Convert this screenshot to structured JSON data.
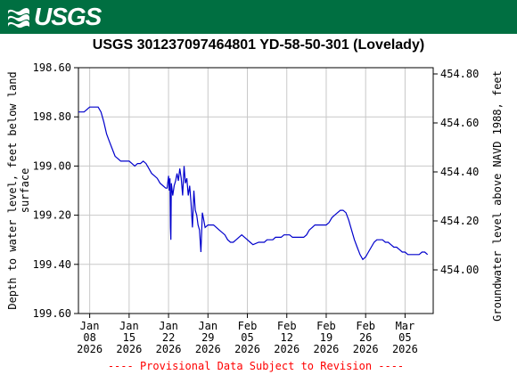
{
  "header": {
    "logo_text": "USGS"
  },
  "chart_data": {
    "type": "line",
    "title": "USGS 301237097464801 YD-58-50-301 (Lovelady)",
    "ylabel_left_lines": [
      "Depth to water level, feet below land",
      "surface"
    ],
    "ylabel_right": "Groundwater level above NAVD 1988, feet",
    "footer_note": "---- Provisional Data Subject to Revision ----",
    "x_domain": [
      "2026-01-06",
      "2026-03-10"
    ],
    "x_ticks": [
      {
        "date": "2026-01-08",
        "lines": [
          "Jan",
          "08",
          "2026"
        ]
      },
      {
        "date": "2026-01-15",
        "lines": [
          "Jan",
          "15",
          "2026"
        ]
      },
      {
        "date": "2026-01-22",
        "lines": [
          "Jan",
          "22",
          "2026"
        ]
      },
      {
        "date": "2026-01-29",
        "lines": [
          "Jan",
          "29",
          "2026"
        ]
      },
      {
        "date": "2026-02-05",
        "lines": [
          "Feb",
          "05",
          "2026"
        ]
      },
      {
        "date": "2026-02-12",
        "lines": [
          "Feb",
          "12",
          "2026"
        ]
      },
      {
        "date": "2026-02-19",
        "lines": [
          "Feb",
          "19",
          "2026"
        ]
      },
      {
        "date": "2026-02-26",
        "lines": [
          "Feb",
          "26",
          "2026"
        ]
      },
      {
        "date": "2026-03-05",
        "lines": [
          "Mar",
          "05",
          "2026"
        ]
      }
    ],
    "y_left": {
      "min": 198.6,
      "max": 199.6,
      "inverted": true,
      "ticks": [
        "198.60",
        "198.80",
        "199.00",
        "199.20",
        "199.40",
        "199.60"
      ]
    },
    "y_right": {
      "min": 454.0,
      "max": 454.8,
      "ticks": [
        "454.80",
        "454.60",
        "454.40",
        "454.20",
        "454.00"
      ]
    },
    "grid": true,
    "line_color": "#0000cc",
    "series": [
      {
        "points": [
          [
            "2026-01-06T00:00",
            198.78
          ],
          [
            "2026-01-07T00:00",
            198.78
          ],
          [
            "2026-01-07T12:00",
            198.77
          ],
          [
            "2026-01-08T00:00",
            198.76
          ],
          [
            "2026-01-09T12:00",
            198.76
          ],
          [
            "2026-01-10T00:00",
            198.78
          ],
          [
            "2026-01-10T12:00",
            198.82
          ],
          [
            "2026-01-11T00:00",
            198.87
          ],
          [
            "2026-01-11T12:00",
            198.9
          ],
          [
            "2026-01-12T00:00",
            198.93
          ],
          [
            "2026-01-12T12:00",
            198.96
          ],
          [
            "2026-01-13T00:00",
            198.97
          ],
          [
            "2026-01-13T12:00",
            198.98
          ],
          [
            "2026-01-14T00:00",
            198.98
          ],
          [
            "2026-01-14T12:00",
            198.98
          ],
          [
            "2026-01-15T00:00",
            198.98
          ],
          [
            "2026-01-15T12:00",
            198.99
          ],
          [
            "2026-01-16T00:00",
            199.0
          ],
          [
            "2026-01-16T12:00",
            198.99
          ],
          [
            "2026-01-17T00:00",
            198.99
          ],
          [
            "2026-01-17T12:00",
            198.98
          ],
          [
            "2026-01-18T00:00",
            198.99
          ],
          [
            "2026-01-18T12:00",
            199.01
          ],
          [
            "2026-01-19T00:00",
            199.03
          ],
          [
            "2026-01-19T12:00",
            199.04
          ],
          [
            "2026-01-20T00:00",
            199.05
          ],
          [
            "2026-01-20T12:00",
            199.07
          ],
          [
            "2026-01-21T00:00",
            199.08
          ],
          [
            "2026-01-21T12:00",
            199.09
          ],
          [
            "2026-01-21T18:00",
            199.09
          ],
          [
            "2026-01-22T00:00",
            199.04
          ],
          [
            "2026-01-22T03:00",
            199.1
          ],
          [
            "2026-01-22T06:00",
            199.05
          ],
          [
            "2026-01-22T08:00",
            199.25
          ],
          [
            "2026-01-22T10:00",
            199.3
          ],
          [
            "2026-01-22T12:00",
            199.07
          ],
          [
            "2026-01-22T18:00",
            199.12
          ],
          [
            "2026-01-23T00:00",
            199.08
          ],
          [
            "2026-01-23T06:00",
            199.06
          ],
          [
            "2026-01-23T12:00",
            199.03
          ],
          [
            "2026-01-23T18:00",
            199.06
          ],
          [
            "2026-01-24T00:00",
            199.01
          ],
          [
            "2026-01-24T06:00",
            199.05
          ],
          [
            "2026-01-24T12:00",
            199.12
          ],
          [
            "2026-01-24T18:00",
            199.0
          ],
          [
            "2026-01-25T00:00",
            199.07
          ],
          [
            "2026-01-25T06:00",
            199.05
          ],
          [
            "2026-01-25T12:00",
            199.12
          ],
          [
            "2026-01-25T18:00",
            199.08
          ],
          [
            "2026-01-26T00:00",
            199.15
          ],
          [
            "2026-01-26T06:00",
            199.25
          ],
          [
            "2026-01-26T12:00",
            199.1
          ],
          [
            "2026-01-26T18:00",
            199.18
          ],
          [
            "2026-01-27T00:00",
            199.2
          ],
          [
            "2026-01-27T06:00",
            199.24
          ],
          [
            "2026-01-27T12:00",
            199.26
          ],
          [
            "2026-01-27T18:00",
            199.35
          ],
          [
            "2026-01-28T00:00",
            199.19
          ],
          [
            "2026-01-28T06:00",
            199.22
          ],
          [
            "2026-01-28T12:00",
            199.25
          ],
          [
            "2026-01-29T00:00",
            199.24
          ],
          [
            "2026-01-30T00:00",
            199.24
          ],
          [
            "2026-01-30T12:00",
            199.25
          ],
          [
            "2026-01-31T00:00",
            199.26
          ],
          [
            "2026-02-01T00:00",
            199.28
          ],
          [
            "2026-02-01T12:00",
            199.3
          ],
          [
            "2026-02-02T00:00",
            199.31
          ],
          [
            "2026-02-02T12:00",
            199.31
          ],
          [
            "2026-02-03T00:00",
            199.3
          ],
          [
            "2026-02-03T12:00",
            199.29
          ],
          [
            "2026-02-04T00:00",
            199.28
          ],
          [
            "2026-02-04T12:00",
            199.29
          ],
          [
            "2026-02-05T00:00",
            199.3
          ],
          [
            "2026-02-05T12:00",
            199.31
          ],
          [
            "2026-02-06T00:00",
            199.32
          ],
          [
            "2026-02-07T00:00",
            199.31
          ],
          [
            "2026-02-08T00:00",
            199.31
          ],
          [
            "2026-02-08T12:00",
            199.3
          ],
          [
            "2026-02-09T12:00",
            199.3
          ],
          [
            "2026-02-10T00:00",
            199.29
          ],
          [
            "2026-02-11T00:00",
            199.29
          ],
          [
            "2026-02-11T12:00",
            199.28
          ],
          [
            "2026-02-12T12:00",
            199.28
          ],
          [
            "2026-02-13T00:00",
            199.29
          ],
          [
            "2026-02-14T00:00",
            199.29
          ],
          [
            "2026-02-15T00:00",
            199.29
          ],
          [
            "2026-02-15T12:00",
            199.28
          ],
          [
            "2026-02-16T00:00",
            199.26
          ],
          [
            "2026-02-16T12:00",
            199.25
          ],
          [
            "2026-02-17T00:00",
            199.24
          ],
          [
            "2026-02-18T00:00",
            199.24
          ],
          [
            "2026-02-19T00:00",
            199.24
          ],
          [
            "2026-02-19T12:00",
            199.23
          ],
          [
            "2026-02-20T00:00",
            199.21
          ],
          [
            "2026-02-20T12:00",
            199.2
          ],
          [
            "2026-02-21T00:00",
            199.19
          ],
          [
            "2026-02-21T12:00",
            199.18
          ],
          [
            "2026-02-22T00:00",
            199.18
          ],
          [
            "2026-02-22T12:00",
            199.19
          ],
          [
            "2026-02-23T00:00",
            199.22
          ],
          [
            "2026-02-23T12:00",
            199.26
          ],
          [
            "2026-02-24T00:00",
            199.3
          ],
          [
            "2026-02-24T12:00",
            199.33
          ],
          [
            "2026-02-25T00:00",
            199.36
          ],
          [
            "2026-02-25T12:00",
            199.38
          ],
          [
            "2026-02-26T00:00",
            199.37
          ],
          [
            "2026-02-26T12:00",
            199.35
          ],
          [
            "2026-02-27T00:00",
            199.33
          ],
          [
            "2026-02-27T12:00",
            199.31
          ],
          [
            "2026-02-28T00:00",
            199.3
          ],
          [
            "2026-03-01T00:00",
            199.3
          ],
          [
            "2026-03-01T12:00",
            199.31
          ],
          [
            "2026-03-02T00:00",
            199.31
          ],
          [
            "2026-03-02T12:00",
            199.32
          ],
          [
            "2026-03-03T00:00",
            199.33
          ],
          [
            "2026-03-03T12:00",
            199.33
          ],
          [
            "2026-03-04T00:00",
            199.34
          ],
          [
            "2026-03-04T12:00",
            199.35
          ],
          [
            "2026-03-05T00:00",
            199.35
          ],
          [
            "2026-03-05T12:00",
            199.36
          ],
          [
            "2026-03-06T00:00",
            199.36
          ],
          [
            "2026-03-07T00:00",
            199.36
          ],
          [
            "2026-03-07T12:00",
            199.36
          ],
          [
            "2026-03-08T00:00",
            199.35
          ],
          [
            "2026-03-08T12:00",
            199.35
          ],
          [
            "2026-03-09T00:00",
            199.36
          ]
        ]
      }
    ]
  }
}
